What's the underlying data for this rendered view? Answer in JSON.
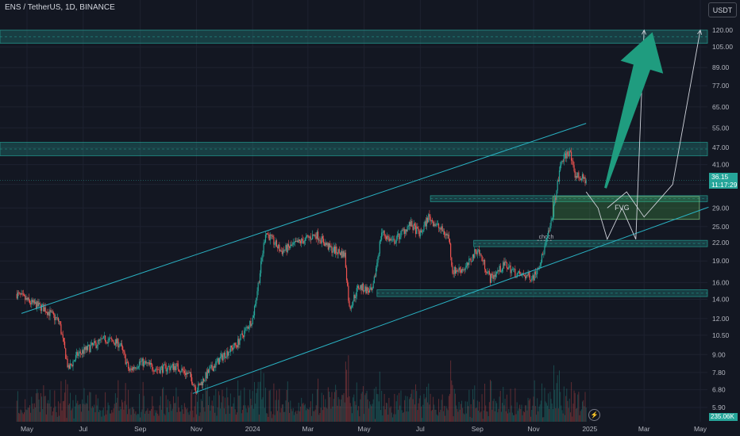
{
  "header": {
    "title": "ENS / TetherUS, 1D, BINANCE",
    "currency_button": "USDT"
  },
  "price_label": {
    "value": "36.15",
    "countdown": "11:17:29"
  },
  "volume_label": "235.06K",
  "icons": {
    "flash": "flash-icon"
  },
  "colors": {
    "background": "#131722",
    "zone": "#26a69a",
    "channel": "#2ab3c4",
    "arrow": "#1f9c7f",
    "up": "#26a69a",
    "down": "#ef5350"
  },
  "chart_data": {
    "type": "candlestick",
    "symbol": "ENS / TetherUS",
    "interval": "1D",
    "exchange": "BINANCE",
    "y_scale": "log",
    "y_ticks": [
      "120.00",
      "105.00",
      "89.00",
      "77.00",
      "65.00",
      "55.00",
      "47.00",
      "41.00",
      "35.00",
      "29.00",
      "25.00",
      "22.00",
      "19.00",
      "16.00",
      "14.00",
      "12.00",
      "10.50",
      "9.00",
      "7.80",
      "6.80",
      "5.90"
    ],
    "y_tick_values": [
      120,
      105,
      89,
      77,
      65,
      55,
      47,
      41,
      35,
      29,
      25,
      22,
      19,
      16,
      14,
      12,
      10.5,
      9,
      7.8,
      6.8,
      5.9
    ],
    "x_ticks": [
      "May",
      "Jul",
      "Sep",
      "Nov",
      "2024",
      "Mar",
      "May",
      "Jul",
      "Sep",
      "Nov",
      "2025",
      "Mar",
      "May"
    ],
    "x_tick_dates": [
      "2023-05-01",
      "2023-07-01",
      "2023-09-01",
      "2023-11-01",
      "2024-01-01",
      "2024-03-01",
      "2024-05-01",
      "2024-07-01",
      "2024-09-01",
      "2024-11-01",
      "2025-01-01",
      "2025-03-01",
      "2025-05-01"
    ],
    "close_path": [
      [
        "2023-04-20",
        14.6
      ],
      [
        "2023-05-05",
        13.6
      ],
      [
        "2023-05-20",
        13.0
      ],
      [
        "2023-06-05",
        11.7
      ],
      [
        "2023-06-15",
        8.0
      ],
      [
        "2023-06-25",
        9.0
      ],
      [
        "2023-07-10",
        9.6
      ],
      [
        "2023-07-25",
        10.2
      ],
      [
        "2023-08-10",
        9.8
      ],
      [
        "2023-08-20",
        7.9
      ],
      [
        "2023-09-01",
        8.5
      ],
      [
        "2023-09-20",
        8.0
      ],
      [
        "2023-10-10",
        8.2
      ],
      [
        "2023-10-25",
        7.6
      ],
      [
        "2023-11-01",
        6.8
      ],
      [
        "2023-11-15",
        7.9
      ],
      [
        "2023-12-01",
        9.0
      ],
      [
        "2023-12-15",
        9.8
      ],
      [
        "2024-01-01",
        12.0
      ],
      [
        "2024-01-08",
        16.5
      ],
      [
        "2024-01-15",
        24.0
      ],
      [
        "2024-02-01",
        20.5
      ],
      [
        "2024-02-20",
        22.0
      ],
      [
        "2024-03-10",
        23.5
      ],
      [
        "2024-03-25",
        21.0
      ],
      [
        "2024-04-10",
        20.0
      ],
      [
        "2024-04-15",
        13.0
      ],
      [
        "2024-04-25",
        15.5
      ],
      [
        "2024-05-10",
        14.8
      ],
      [
        "2024-05-20",
        24.0
      ],
      [
        "2024-06-01",
        22.0
      ],
      [
        "2024-06-20",
        25.5
      ],
      [
        "2024-07-01",
        23.5
      ],
      [
        "2024-07-10",
        27.0
      ],
      [
        "2024-07-20",
        25.0
      ],
      [
        "2024-08-01",
        23.0
      ],
      [
        "2024-08-05",
        17.5
      ],
      [
        "2024-08-20",
        18.0
      ],
      [
        "2024-09-01",
        21.0
      ],
      [
        "2024-09-15",
        16.5
      ],
      [
        "2024-10-01",
        18.5
      ],
      [
        "2024-10-15",
        17.0
      ],
      [
        "2024-11-01",
        16.8
      ],
      [
        "2024-11-10",
        19.5
      ],
      [
        "2024-11-20",
        25.5
      ],
      [
        "2024-12-01",
        42.0
      ],
      [
        "2024-12-10",
        46.0
      ],
      [
        "2024-12-15",
        38.0
      ],
      [
        "2024-12-28",
        36.15
      ]
    ],
    "volume_label": "235.06K",
    "last_price": 36.15,
    "annotations": {
      "zones": [
        {
          "range": [
            108,
            120
          ]
        },
        {
          "range": [
            44,
            49
          ]
        },
        {
          "range": [
            30.5,
            32
          ]
        },
        {
          "range": [
            21.3,
            22.4
          ]
        },
        {
          "range": [
            14.3,
            15.1
          ]
        }
      ],
      "fvg_zone": {
        "label": "FVG",
        "range": [
          26.5,
          31.8
        ],
        "start": "2024-11-22",
        "end": "2025-04-30"
      },
      "choch_label": "choch",
      "choch_line": {
        "price": 22.4,
        "start": "2024-11-05",
        "end": "2024-11-22"
      },
      "channel_upper": [
        [
          "2023-04-25",
          12.5
        ],
        [
          "2024-12-28",
          57.0
        ]
      ],
      "channel_lower": [
        [
          "2023-10-28",
          6.6
        ],
        [
          "2025-05-10",
          29.2
        ]
      ],
      "projection_1": [
        [
          "2024-12-28",
          33
        ],
        [
          "2025-01-10",
          29
        ],
        [
          "2025-01-20",
          22.6
        ],
        [
          "2025-02-05",
          29
        ],
        [
          "2025-02-20",
          22.6
        ],
        [
          "2025-03-01",
          120
        ]
      ],
      "projection_2": [
        [
          "2025-01-20",
          29
        ],
        [
          "2025-02-10",
          33
        ],
        [
          "2025-03-01",
          27
        ],
        [
          "2025-04-01",
          35
        ],
        [
          "2025-05-01",
          120
        ]
      ]
    }
  }
}
